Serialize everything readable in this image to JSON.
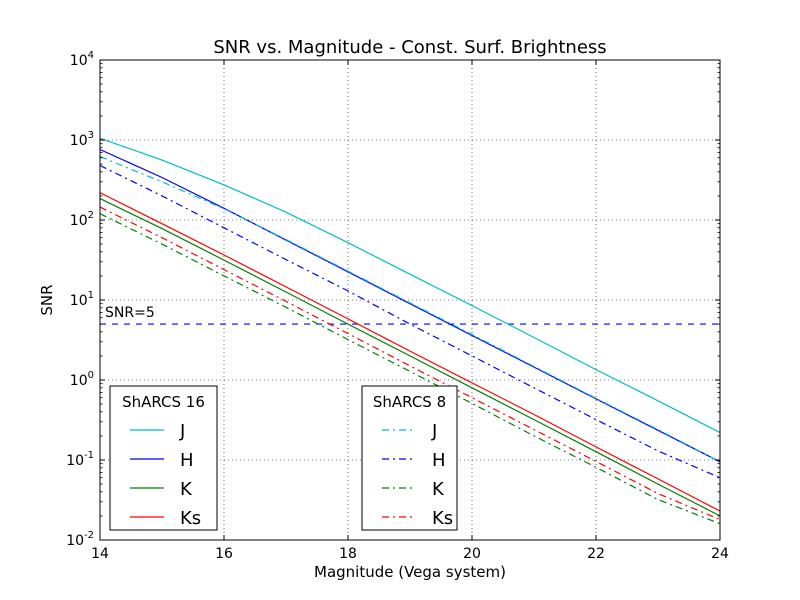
{
  "chart_data": {
    "type": "line",
    "title": "SNR vs. Magnitude - Const. Surf. Brightness",
    "xlabel": "Magnitude (Vega system)",
    "ylabel": "SNR",
    "xlim": [
      14,
      24
    ],
    "ylim_log10": [
      -2,
      4
    ],
    "yscale": "log",
    "grid": true,
    "x_ticks": [
      14,
      16,
      18,
      20,
      22,
      24
    ],
    "x_tick_labels": [
      "14",
      "16",
      "18",
      "20",
      "22",
      "24"
    ],
    "y_ticks_log10": [
      -2,
      -1,
      0,
      1,
      2,
      3,
      4
    ],
    "y_tick_base": "10",
    "y_tick_exponents": [
      "-2",
      "-1",
      "0",
      "1",
      "2",
      "3",
      "4"
    ],
    "threshold": {
      "value": 5,
      "label": "SNR=5",
      "color": "#0000ff",
      "style": "dashed"
    },
    "x": [
      14,
      15,
      16,
      17,
      18,
      19,
      20,
      21,
      22,
      23,
      24
    ],
    "series": [
      {
        "name": "J",
        "group": "ShARCS 16",
        "style": "solid",
        "color": "#00bfbf",
        "values": [
          1050,
          560,
          275,
          125,
          52,
          21,
          8.5,
          3.4,
          1.35,
          0.55,
          0.22
        ]
      },
      {
        "name": "H",
        "group": "ShARCS 16",
        "style": "solid",
        "color": "#0000ff",
        "values": [
          760,
          340,
          140,
          56,
          22.5,
          9.0,
          3.6,
          1.45,
          0.58,
          0.235,
          0.095
        ]
      },
      {
        "name": "K",
        "group": "ShARCS 16",
        "style": "solid",
        "color": "#008000",
        "values": [
          185,
          78,
          31.5,
          12.6,
          5.0,
          2.0,
          0.8,
          0.32,
          0.127,
          0.05,
          0.02
        ]
      },
      {
        "name": "Ks",
        "group": "ShARCS 16",
        "style": "solid",
        "color": "#ff0000",
        "values": [
          220,
          90,
          36.5,
          14.6,
          5.8,
          2.3,
          0.92,
          0.37,
          0.146,
          0.058,
          0.023
        ]
      },
      {
        "name": "J",
        "group": "ShARCS 8",
        "style": "dashdot",
        "color": "#00bfbf",
        "values": [
          620,
          300,
          138,
          57,
          23,
          9.2,
          3.7,
          1.48,
          0.59,
          0.24,
          0.095
        ]
      },
      {
        "name": "H",
        "group": "ShARCS 8",
        "style": "dashdot",
        "color": "#0000ff",
        "values": [
          480,
          200,
          80,
          32,
          13,
          5.0,
          2.0,
          0.8,
          0.32,
          0.13,
          0.06
        ]
      },
      {
        "name": "K",
        "group": "ShARCS 8",
        "style": "dashdot",
        "color": "#008000",
        "values": [
          120,
          50,
          20,
          8.1,
          3.2,
          1.28,
          0.51,
          0.2,
          0.081,
          0.032,
          0.016
        ]
      },
      {
        "name": "Ks",
        "group": "ShARCS 8",
        "style": "dashdot",
        "color": "#ff0000",
        "values": [
          145,
          60,
          24,
          9.6,
          3.8,
          1.5,
          0.6,
          0.24,
          0.096,
          0.038,
          0.018
        ]
      }
    ],
    "legends": [
      {
        "title": "ShARCS 16",
        "placement": "lower-left"
      },
      {
        "title": "ShARCS 8",
        "placement": "lower-center"
      }
    ]
  }
}
